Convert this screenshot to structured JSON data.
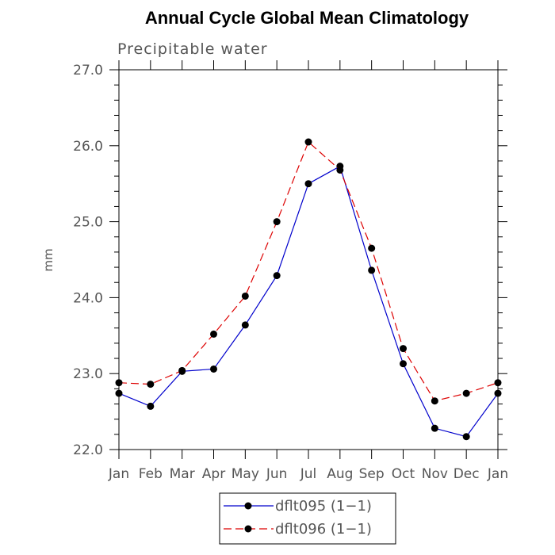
{
  "chart_data": {
    "type": "line",
    "title": "Annual Cycle Global Mean Climatology",
    "subtitle": "Precipitable water",
    "xlabel": "",
    "ylabel": "mm",
    "categories": [
      "Jan",
      "Feb",
      "Mar",
      "Apr",
      "May",
      "Jun",
      "Jul",
      "Aug",
      "Sep",
      "Oct",
      "Nov",
      "Dec",
      "Jan"
    ],
    "ylim": [
      22.0,
      27.0
    ],
    "yticks": [
      "22.0",
      "23.0",
      "24.0",
      "25.0",
      "26.0",
      "27.0"
    ],
    "series": [
      {
        "name": "dflt095 (1−1)",
        "color": "#0000cc",
        "dash": "solid",
        "values": [
          22.74,
          22.57,
          23.03,
          23.06,
          23.64,
          24.29,
          25.5,
          25.73,
          24.36,
          23.13,
          22.28,
          22.17,
          22.74
        ]
      },
      {
        "name": "dflt096 (1−1)",
        "color": "#dd0000",
        "dash": "dashed",
        "values": [
          22.88,
          22.86,
          23.04,
          23.52,
          24.02,
          25.0,
          26.05,
          25.68,
          24.65,
          23.33,
          22.64,
          22.74,
          22.88
        ]
      }
    ],
    "grid": false,
    "legend_position": "bottom"
  }
}
